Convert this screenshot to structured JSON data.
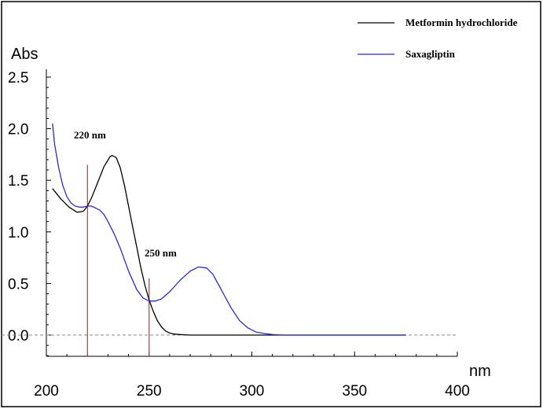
{
  "chart_data": {
    "type": "line",
    "xlabel": "nm",
    "ylabel": "Abs",
    "xlim": [
      200,
      400
    ],
    "ylim": [
      -0.25,
      2.5
    ],
    "x_ticks": [
      200,
      250,
      300,
      350,
      400
    ],
    "y_ticks": [
      0.0,
      0.5,
      1.0,
      1.5,
      2.0,
      2.5
    ],
    "x_tick_labels": [
      "200",
      "250",
      "300",
      "350",
      "400"
    ],
    "y_tick_labels": [
      "0.0",
      "0.5",
      "1.0",
      "1.5",
      "2.0",
      "2.5"
    ],
    "grid": false,
    "zero_line": "dashed",
    "legend_position": "top-right",
    "series": [
      {
        "name": "Metformin hydrochloride",
        "color": "#000000",
        "x": [
          203,
          207,
          211,
          215,
          218,
          220,
          222,
          225,
          228,
          231,
          232,
          234,
          236,
          238,
          240,
          242,
          244,
          246,
          248,
          250,
          252,
          254,
          256,
          258,
          260,
          262,
          265,
          270,
          280,
          300,
          320,
          340,
          360,
          375
        ],
        "y": [
          1.42,
          1.32,
          1.24,
          1.19,
          1.2,
          1.25,
          1.33,
          1.48,
          1.63,
          1.73,
          1.74,
          1.72,
          1.62,
          1.45,
          1.25,
          1.05,
          0.85,
          0.65,
          0.48,
          0.34,
          0.23,
          0.14,
          0.08,
          0.04,
          0.02,
          0.01,
          0.005,
          0.0,
          0.0,
          0.0,
          0.0,
          0.0,
          0.0,
          0.0
        ]
      },
      {
        "name": "Saxagliptin",
        "color": "#2b2bd6",
        "x": [
          203,
          204,
          206,
          208,
          210,
          212,
          214,
          216,
          218,
          220,
          222,
          224,
          226,
          228,
          230,
          233,
          236,
          240,
          244,
          247,
          250,
          253,
          256,
          260,
          265,
          270,
          274,
          278,
          281,
          284,
          287,
          290,
          294,
          298,
          302,
          306,
          310,
          315,
          320,
          340,
          360,
          375
        ],
        "y": [
          2.05,
          1.85,
          1.62,
          1.45,
          1.34,
          1.28,
          1.25,
          1.24,
          1.24,
          1.25,
          1.25,
          1.23,
          1.21,
          1.17,
          1.1,
          0.98,
          0.84,
          0.62,
          0.44,
          0.36,
          0.33,
          0.33,
          0.35,
          0.42,
          0.53,
          0.62,
          0.66,
          0.65,
          0.59,
          0.48,
          0.37,
          0.26,
          0.14,
          0.07,
          0.03,
          0.015,
          0.005,
          0.0,
          0.0,
          0.0,
          0.0,
          0.0
        ]
      }
    ],
    "markers": [
      {
        "x": 220,
        "y_top": 1.65,
        "label": "220 nm",
        "color": "#c0392b"
      },
      {
        "x": 250,
        "y_top": 0.55,
        "label": "250 nm",
        "color": "#c0392b"
      }
    ]
  }
}
